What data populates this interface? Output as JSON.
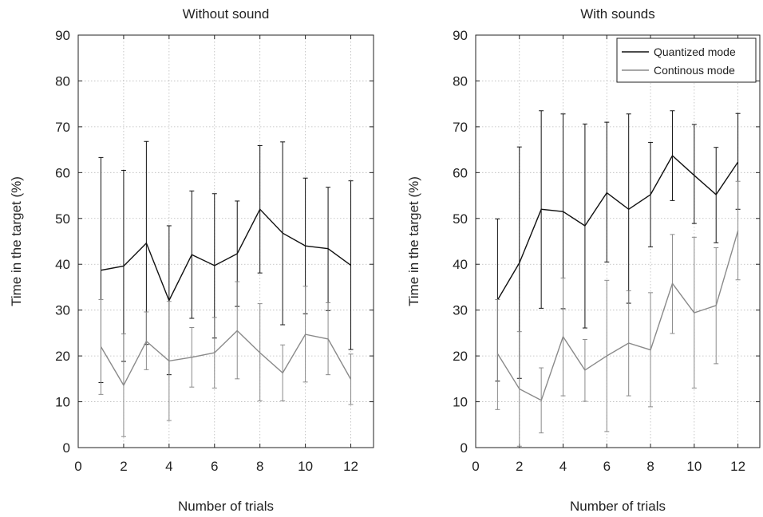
{
  "chart_data": [
    {
      "type": "line",
      "title": "Without sound",
      "xlabel": "Number of trials",
      "ylabel": "Time in the target (%)",
      "xlim": [
        0,
        13
      ],
      "ylim": [
        0,
        90
      ],
      "xticks": [
        0,
        2,
        4,
        6,
        8,
        10,
        12
      ],
      "yticks": [
        0,
        10,
        20,
        30,
        40,
        50,
        60,
        70,
        80,
        90
      ],
      "grid": true,
      "legend": null,
      "x": [
        1,
        2,
        3,
        4,
        5,
        6,
        7,
        8,
        9,
        10,
        11,
        12
      ],
      "series": [
        {
          "color": "#111111",
          "values": [
            38.7,
            39.6,
            44.6,
            32.1,
            42.1,
            39.7,
            42.3,
            52.0,
            46.8,
            44.0,
            43.4,
            39.8
          ],
          "err_low": [
            14.2,
            18.8,
            22.5,
            15.9,
            28.2,
            23.9,
            30.8,
            38.1,
            26.8,
            29.2,
            29.9,
            21.4
          ],
          "err_high": [
            63.3,
            60.5,
            66.8,
            48.4,
            56.0,
            55.4,
            53.8,
            65.9,
            66.7,
            58.8,
            56.8,
            58.2
          ]
        },
        {
          "color": "#8a8a8a",
          "values": [
            22.0,
            13.6,
            23.2,
            18.9,
            19.7,
            20.7,
            25.5,
            20.7,
            16.3,
            24.7,
            23.7,
            14.9
          ],
          "err_low": [
            11.6,
            2.4,
            17.0,
            5.9,
            13.2,
            13.0,
            15.0,
            10.2,
            10.2,
            14.3,
            15.9,
            9.4
          ],
          "err_high": [
            32.3,
            24.8,
            29.6,
            31.9,
            26.2,
            28.4,
            36.2,
            31.4,
            22.4,
            35.2,
            31.6,
            20.4
          ]
        }
      ]
    },
    {
      "type": "line",
      "title": "With sounds",
      "xlabel": "Number of trials",
      "ylabel": "Time in the target (%)",
      "xlim": [
        0,
        13
      ],
      "ylim": [
        0,
        90
      ],
      "xticks": [
        0,
        2,
        4,
        6,
        8,
        10,
        12
      ],
      "yticks": [
        0,
        10,
        20,
        30,
        40,
        50,
        60,
        70,
        80,
        90
      ],
      "grid": true,
      "legend": "top-right",
      "x": [
        1,
        2,
        3,
        4,
        5,
        6,
        7,
        8,
        9,
        10,
        11,
        12
      ],
      "series": [
        {
          "name": "Quantized mode",
          "color": "#111111",
          "values": [
            32.2,
            40.3,
            52.0,
            51.5,
            48.4,
            55.6,
            52.0,
            55.2,
            63.7,
            59.4,
            55.2,
            62.3
          ],
          "err_low": [
            14.5,
            15.1,
            30.4,
            30.3,
            26.1,
            40.5,
            31.5,
            43.8,
            53.9,
            48.9,
            44.7,
            52.0
          ],
          "err_high": [
            49.9,
            65.6,
            73.5,
            72.8,
            70.6,
            71.0,
            72.8,
            66.6,
            73.5,
            70.5,
            65.5,
            72.9
          ]
        },
        {
          "name": "Continous mode",
          "color": "#8a8a8a",
          "values": [
            20.5,
            12.8,
            10.3,
            24.2,
            16.9,
            20.0,
            22.8,
            21.3,
            35.8,
            29.4,
            31.0,
            47.3
          ],
          "err_low": [
            8.3,
            0.3,
            3.2,
            11.3,
            10.1,
            3.5,
            11.3,
            8.9,
            24.9,
            13.0,
            18.3,
            36.6
          ],
          "err_high": [
            32.3,
            25.3,
            17.4,
            37.0,
            23.6,
            36.5,
            34.2,
            33.8,
            46.5,
            45.9,
            43.6,
            58.1
          ]
        }
      ]
    }
  ]
}
